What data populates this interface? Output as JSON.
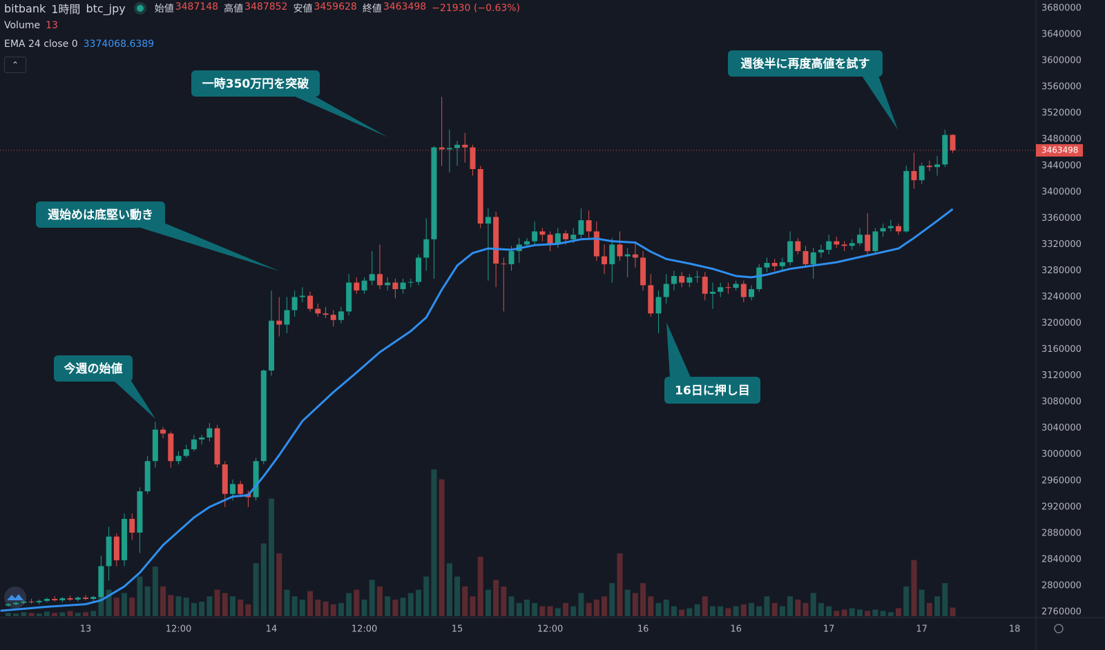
{
  "chart_data": {
    "type": "candlestick",
    "exchange": "bitbank",
    "interval": "1時間",
    "symbol": "btc_jpy",
    "ohlc_labels": [
      "始値",
      "高値",
      "安値",
      "終値"
    ],
    "change": "−21930 (−0.63%)",
    "volume_label": "Volume",
    "ema_label": "EMA 24 close 0",
    "up_color": "#1f9e8a",
    "down_color": "#e0504c",
    "volume_up_color": "#1b4947",
    "volume_down_color": "#5b2a30",
    "ema_color": "#2f8ff0",
    "grid": false,
    "xlim": [
      -11.06,
      122.75
    ],
    "xticks": [
      {
        "value": 0,
        "label": "13"
      },
      {
        "value": 12,
        "label": "12:00"
      },
      {
        "value": 24,
        "label": "14"
      },
      {
        "value": 36,
        "label": "12:00"
      },
      {
        "value": 48,
        "label": "15"
      },
      {
        "value": 60,
        "label": "12:00"
      },
      {
        "value": 72,
        "label": "16"
      },
      {
        "value": 84,
        "label": "16"
      },
      {
        "value": 96,
        "label": "17"
      },
      {
        "value": 108,
        "label": "17"
      },
      {
        "value": 120,
        "label": "18"
      }
    ],
    "ylim": [
      2753700,
      3692600
    ],
    "yticks": [
      2760000,
      2800000,
      2840000,
      2880000,
      2920000,
      2960000,
      3000000,
      3040000,
      3080000,
      3120000,
      3160000,
      3200000,
      3240000,
      3280000,
      3320000,
      3360000,
      3400000,
      3440000,
      3480000,
      3520000,
      3560000,
      3600000,
      3640000,
      3680000
    ],
    "volume_ylim": [
      0,
      240
    ],
    "x": [
      -10,
      -9,
      -8,
      -7,
      -6,
      -5,
      -4,
      -3,
      -2,
      -1,
      0,
      1,
      2,
      3,
      4,
      5,
      6,
      7,
      8,
      9,
      10,
      11,
      12,
      13,
      14,
      15,
      16,
      17,
      18,
      19,
      20,
      21,
      22,
      23,
      24,
      25,
      26,
      27,
      28,
      29,
      30,
      31,
      32,
      33,
      34,
      35,
      36,
      37,
      38,
      39,
      40,
      41,
      42,
      43,
      44,
      45,
      46,
      47,
      48,
      49,
      50,
      51,
      52,
      53,
      54,
      55,
      56,
      57,
      58,
      59,
      60,
      61,
      62,
      63,
      64,
      65,
      66,
      67,
      68,
      69,
      70,
      71,
      72,
      73,
      74,
      75,
      76,
      77,
      78,
      79,
      80,
      81,
      82,
      83,
      84,
      85,
      86,
      87,
      88,
      89,
      90,
      91,
      92,
      93,
      94,
      95,
      96,
      97,
      98,
      99,
      100,
      101,
      102,
      103,
      104,
      105,
      106,
      107,
      108,
      109,
      110,
      111,
      112
    ],
    "ohlc": [
      [
        2770000,
        2774000,
        2768000,
        2772000
      ],
      [
        2772000,
        2776000,
        2770000,
        2774000
      ],
      [
        2774000,
        2778000,
        2772000,
        2776000
      ],
      [
        2776000,
        2780000,
        2773000,
        2775000
      ],
      [
        2775000,
        2779000,
        2772000,
        2777000
      ],
      [
        2777000,
        2782000,
        2775000,
        2780000
      ],
      [
        2780000,
        2784000,
        2776000,
        2778000
      ],
      [
        2778000,
        2783000,
        2775000,
        2781000
      ],
      [
        2781000,
        2785000,
        2777000,
        2779000
      ],
      [
        2779000,
        2784000,
        2776000,
        2782000
      ],
      [
        2782000,
        2786000,
        2778000,
        2780000
      ],
      [
        2780000,
        2785000,
        2776000,
        2783000
      ],
      [
        2783000,
        2846000,
        2778000,
        2830000
      ],
      [
        2830000,
        2890000,
        2808000,
        2875000
      ],
      [
        2875000,
        2880000,
        2830000,
        2839000
      ],
      [
        2839000,
        2910000,
        2830000,
        2902000
      ],
      [
        2902000,
        2910000,
        2870000,
        2881000
      ],
      [
        2881000,
        2950000,
        2850000,
        2944000
      ],
      [
        2944000,
        2998000,
        2940000,
        2990000
      ],
      [
        2990000,
        3050000,
        2980000,
        3038000
      ],
      [
        3038000,
        3042000,
        3025000,
        3032000
      ],
      [
        3032000,
        3035000,
        2980000,
        2990000
      ],
      [
        2990000,
        3005000,
        2985000,
        2998000
      ],
      [
        2998000,
        3015000,
        2995000,
        3008000
      ],
      [
        3008000,
        3030000,
        3005000,
        3023000
      ],
      [
        3023000,
        3030000,
        3015000,
        3026000
      ],
      [
        3026000,
        3048000,
        3020000,
        3040000
      ],
      [
        3040000,
        3045000,
        2980000,
        2985000
      ],
      [
        2985000,
        2990000,
        2920000,
        2940000
      ],
      [
        2940000,
        2962000,
        2930000,
        2955000
      ],
      [
        2955000,
        2960000,
        2935000,
        2940000
      ],
      [
        2940000,
        2945000,
        2920000,
        2935000
      ],
      [
        2935000,
        2995000,
        2930000,
        2990000
      ],
      [
        2990000,
        3130000,
        2985000,
        3128000
      ],
      [
        3128000,
        3250000,
        3120000,
        3204000
      ],
      [
        3204000,
        3240000,
        3180000,
        3198000
      ],
      [
        3198000,
        3240000,
        3185000,
        3220000
      ],
      [
        3220000,
        3250000,
        3210000,
        3240000
      ],
      [
        3240000,
        3255000,
        3232000,
        3242000
      ],
      [
        3242000,
        3248000,
        3218000,
        3222000
      ],
      [
        3222000,
        3230000,
        3210000,
        3215000
      ],
      [
        3215000,
        3225000,
        3208000,
        3213000
      ],
      [
        3213000,
        3220000,
        3195000,
        3205000
      ],
      [
        3205000,
        3225000,
        3200000,
        3218000
      ],
      [
        3218000,
        3275000,
        3212000,
        3262000
      ],
      [
        3262000,
        3270000,
        3245000,
        3250000
      ],
      [
        3250000,
        3270000,
        3245000,
        3265000
      ],
      [
        3265000,
        3310000,
        3258000,
        3275000
      ],
      [
        3275000,
        3320000,
        3252000,
        3258000
      ],
      [
        3258000,
        3270000,
        3250000,
        3262000
      ],
      [
        3262000,
        3268000,
        3238000,
        3252000
      ],
      [
        3252000,
        3268000,
        3245000,
        3262000
      ],
      [
        3262000,
        3268000,
        3255000,
        3263000
      ],
      [
        3263000,
        3305000,
        3258000,
        3300000
      ],
      [
        3300000,
        3360000,
        3280000,
        3328000
      ],
      [
        3328000,
        3470000,
        3268000,
        3468000
      ],
      [
        3468000,
        3545000,
        3440000,
        3465000
      ],
      [
        3465000,
        3495000,
        3430000,
        3467000
      ],
      [
        3467000,
        3478000,
        3440000,
        3472000
      ],
      [
        3472000,
        3490000,
        3445000,
        3468000
      ],
      [
        3468000,
        3472000,
        3425000,
        3435000
      ],
      [
        3435000,
        3440000,
        3345000,
        3352000
      ],
      [
        3352000,
        3375000,
        3265000,
        3362000
      ],
      [
        3362000,
        3370000,
        3255000,
        3291000
      ],
      [
        3291000,
        3300000,
        3218000,
        3290000
      ],
      [
        3290000,
        3318000,
        3280000,
        3310000
      ],
      [
        3310000,
        3330000,
        3292000,
        3320000
      ],
      [
        3320000,
        3330000,
        3315000,
        3325000
      ],
      [
        3325000,
        3355000,
        3318000,
        3340000
      ],
      [
        3340000,
        3345000,
        3325000,
        3335000
      ],
      [
        3335000,
        3340000,
        3310000,
        3320000
      ],
      [
        3320000,
        3345000,
        3315000,
        3337000
      ],
      [
        3337000,
        3342000,
        3320000,
        3328000
      ],
      [
        3328000,
        3345000,
        3322000,
        3335000
      ],
      [
        3335000,
        3375000,
        3330000,
        3357000
      ],
      [
        3357000,
        3372000,
        3330000,
        3340000
      ],
      [
        3340000,
        3355000,
        3295000,
        3302000
      ],
      [
        3302000,
        3320000,
        3275000,
        3290000
      ],
      [
        3290000,
        3330000,
        3262000,
        3320000
      ],
      [
        3320000,
        3340000,
        3295000,
        3302000
      ],
      [
        3302000,
        3315000,
        3270000,
        3305000
      ],
      [
        3305000,
        3325000,
        3285000,
        3300000
      ],
      [
        3300000,
        3310000,
        3250000,
        3258000
      ],
      [
        3258000,
        3275000,
        3210000,
        3215000
      ],
      [
        3215000,
        3250000,
        3185000,
        3240000
      ],
      [
        3240000,
        3275000,
        3230000,
        3260000
      ],
      [
        3260000,
        3280000,
        3250000,
        3272000
      ],
      [
        3272000,
        3278000,
        3255000,
        3262000
      ],
      [
        3262000,
        3275000,
        3255000,
        3270000
      ],
      [
        3270000,
        3280000,
        3262000,
        3271000
      ],
      [
        3271000,
        3278000,
        3235000,
        3245000
      ],
      [
        3245000,
        3262000,
        3222000,
        3248000
      ],
      [
        3248000,
        3262000,
        3240000,
        3255000
      ],
      [
        3255000,
        3262000,
        3245000,
        3254000
      ],
      [
        3254000,
        3265000,
        3250000,
        3260000
      ],
      [
        3260000,
        3265000,
        3232000,
        3240000
      ],
      [
        3240000,
        3258000,
        3235000,
        3252000
      ],
      [
        3252000,
        3290000,
        3248000,
        3285000
      ],
      [
        3285000,
        3300000,
        3278000,
        3292000
      ],
      [
        3292000,
        3298000,
        3280000,
        3287000
      ],
      [
        3287000,
        3300000,
        3280000,
        3293000
      ],
      [
        3293000,
        3340000,
        3288000,
        3325000
      ],
      [
        3325000,
        3330000,
        3305000,
        3310000
      ],
      [
        3310000,
        3318000,
        3285000,
        3290000
      ],
      [
        3290000,
        3315000,
        3268000,
        3308000
      ],
      [
        3308000,
        3320000,
        3300000,
        3312000
      ],
      [
        3312000,
        3335000,
        3305000,
        3325000
      ],
      [
        3325000,
        3332000,
        3315000,
        3320000
      ],
      [
        3320000,
        3325000,
        3310000,
        3318000
      ],
      [
        3318000,
        3328000,
        3312000,
        3322000
      ],
      [
        3322000,
        3345000,
        3318000,
        3335000
      ],
      [
        3335000,
        3368000,
        3305000,
        3310000
      ],
      [
        3310000,
        3345000,
        3305000,
        3340000
      ],
      [
        3340000,
        3352000,
        3332000,
        3345000
      ],
      [
        3345000,
        3358000,
        3340000,
        3348000
      ],
      [
        3348000,
        3352000,
        3335000,
        3340000
      ],
      [
        3340000,
        3440000,
        3338000,
        3432000
      ],
      [
        3432000,
        3460000,
        3405000,
        3418000
      ],
      [
        3418000,
        3445000,
        3412000,
        3440000
      ],
      [
        3440000,
        3448000,
        3432000,
        3438000
      ],
      [
        3438000,
        3455000,
        3425000,
        3442000
      ],
      [
        3442000,
        3495000,
        3438000,
        3487000
      ],
      [
        3487148,
        3487852,
        3459628,
        3463498
      ]
    ],
    "volume": [
      5,
      4,
      6,
      5,
      4,
      7,
      5,
      6,
      8,
      5,
      6,
      8,
      50,
      40,
      28,
      35,
      28,
      60,
      45,
      75,
      45,
      32,
      30,
      28,
      20,
      22,
      30,
      40,
      35,
      30,
      25,
      18,
      80,
      110,
      178,
      95,
      40,
      30,
      25,
      38,
      25,
      22,
      18,
      20,
      35,
      40,
      25,
      55,
      45,
      30,
      25,
      28,
      35,
      40,
      60,
      222,
      207,
      80,
      60,
      45,
      30,
      90,
      40,
      55,
      45,
      30,
      20,
      25,
      20,
      15,
      15,
      12,
      20,
      15,
      35,
      20,
      25,
      30,
      50,
      95,
      40,
      35,
      50,
      30,
      20,
      25,
      15,
      10,
      12,
      18,
      30,
      15,
      15,
      12,
      15,
      18,
      20,
      15,
      30,
      20,
      15,
      30,
      25,
      20,
      35,
      20,
      15,
      8,
      10,
      12,
      10,
      8,
      10,
      8,
      6,
      12,
      45,
      85,
      40,
      20,
      30,
      50,
      13
    ],
    "ema": {
      "x": [
        -11,
        -5,
        0,
        2,
        5,
        7,
        10,
        14,
        16,
        19,
        21,
        23,
        25,
        28,
        32,
        35,
        38,
        42,
        44,
        46,
        48,
        50,
        52,
        55,
        58,
        61,
        64,
        66,
        68,
        71,
        73,
        75,
        78,
        81,
        84,
        86,
        88,
        91,
        94,
        97,
        100,
        102,
        105,
        107,
        110,
        112
      ],
      "values": [
        2762000,
        2768000,
        2772000,
        2778000,
        2799000,
        2820000,
        2862000,
        2904000,
        2920000,
        2936000,
        2938000,
        2967000,
        2999000,
        3051000,
        3095000,
        3125000,
        3156000,
        3188000,
        3209000,
        3251000,
        3288000,
        3307000,
        3314000,
        3312000,
        3319000,
        3321000,
        3328000,
        3329000,
        3325000,
        3323000,
        3309000,
        3298000,
        3291000,
        3283000,
        3272000,
        3270000,
        3274000,
        3283000,
        3288000,
        3293000,
        3301000,
        3306000,
        3314000,
        3330000,
        3356000,
        3374068.6389
      ]
    },
    "annotations": [
      "一時350万円を突破",
      "週始めは底堅い動き",
      "今週の始値",
      "16日に押し目",
      "週後半に再度高値を試す"
    ]
  }
}
